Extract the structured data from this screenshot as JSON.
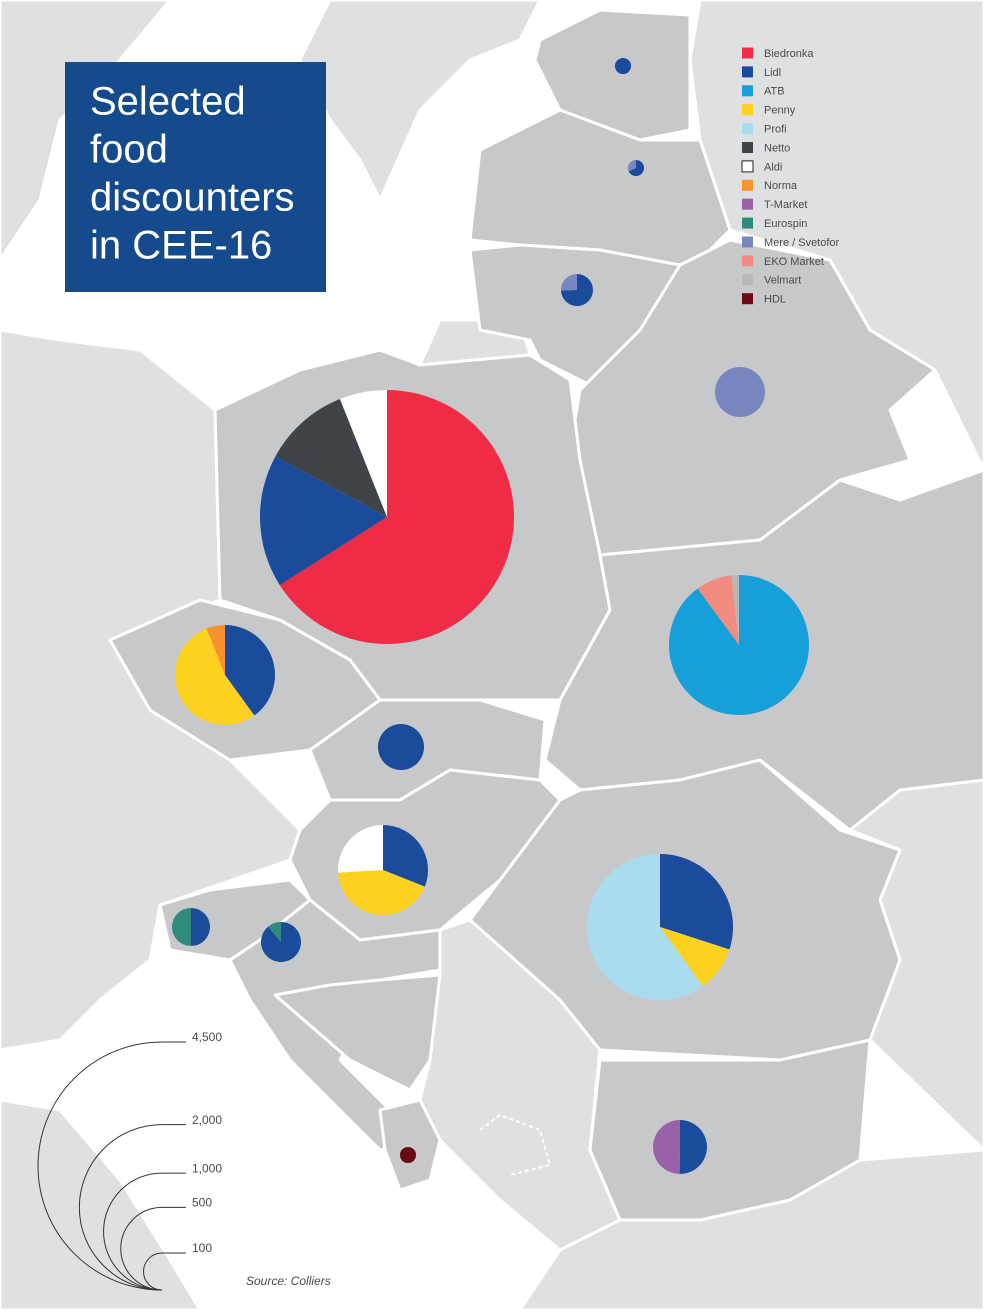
{
  "chart_data": {
    "type": "pie",
    "title": [
      "Selected",
      "food",
      "discounters",
      "in CEE-16"
    ],
    "categories": [
      null,
      null,
      null,
      null,
      null,
      null,
      null,
      null,
      null,
      null,
      null,
      null,
      null,
      null
    ],
    "series": [
      {
        "name": "Biedronka",
        "color": "#ef2b45",
        "values": [
          null,
          null,
          null,
          null,
          3115,
          null,
          null,
          null,
          null,
          null,
          null,
          null,
          null,
          null
        ]
      },
      {
        "name": "Lidl",
        "color": "#1b4b9b",
        "values": [
          19,
          13,
          56,
          null,
          800,
          null,
          293,
          155,
          184,
          468,
          53,
          104,
          107,
          null
        ]
      },
      {
        "name": "ATB",
        "color": "#169fd9",
        "values": [
          null,
          null,
          null,
          null,
          null,
          1290,
          null,
          null,
          null,
          null,
          null,
          null,
          null,
          null
        ]
      },
      {
        "name": "Penny",
        "color": "#fdd120",
        "values": [
          null,
          null,
          null,
          null,
          null,
          null,
          395,
          null,
          255,
          156,
          null,
          null,
          null,
          null
        ]
      },
      {
        "name": "Profi",
        "color": "#a9dcef",
        "values": [
          null,
          null,
          null,
          null,
          null,
          null,
          null,
          null,
          null,
          936,
          null,
          null,
          null,
          null
        ]
      },
      {
        "name": "Netto",
        "color": "#404347",
        "values": [
          null,
          null,
          null,
          null,
          520,
          null,
          null,
          null,
          null,
          null,
          null,
          null,
          null,
          null
        ]
      },
      {
        "name": "Aldi",
        "color": "#ffffff",
        "values": [
          null,
          null,
          null,
          null,
          285,
          null,
          null,
          null,
          154,
          null,
          null,
          null,
          null,
          null
        ]
      },
      {
        "name": "Norma",
        "color": "#f7932e",
        "values": [
          null,
          null,
          null,
          null,
          null,
          null,
          44,
          null,
          null,
          null,
          null,
          null,
          null,
          null
        ]
      },
      {
        "name": "T-Market",
        "color": "#9861a8",
        "values": [
          null,
          null,
          null,
          null,
          null,
          null,
          null,
          null,
          null,
          null,
          null,
          null,
          106,
          null
        ]
      },
      {
        "name": "Eurospin",
        "color": "#2f8b7e",
        "values": [
          null,
          null,
          null,
          null,
          null,
          null,
          null,
          null,
          null,
          null,
          53,
          13,
          null,
          null
        ]
      },
      {
        "name": "Mere / Svetofor",
        "color": "#7887bf",
        "values": [
          null,
          6,
          19,
          183,
          null,
          null,
          null,
          null,
          null,
          null,
          null,
          null,
          null,
          null
        ]
      },
      {
        "name": "EKO Market",
        "color": "#f28c80",
        "values": [
          null,
          null,
          null,
          null,
          null,
          120,
          null,
          null,
          null,
          null,
          null,
          null,
          null,
          null
        ]
      },
      {
        "name": "Velmart",
        "color": "#b6b8ba",
        "values": [
          null,
          null,
          null,
          null,
          null,
          24,
          null,
          null,
          null,
          null,
          null,
          null,
          null,
          null
        ]
      },
      {
        "name": "HDL",
        "color": "#6b0a12",
        "values": [
          null,
          null,
          null,
          null,
          null,
          null,
          null,
          null,
          null,
          null,
          null,
          null,
          null,
          19
        ]
      }
    ],
    "size_legend": [
      {
        "value": 4500,
        "label": "4,500"
      },
      {
        "value": 2000,
        "label": "2,000"
      },
      {
        "value": 1000,
        "label": "1,000"
      },
      500,
      100
    ],
    "source": "Source: Colliers"
  }
}
